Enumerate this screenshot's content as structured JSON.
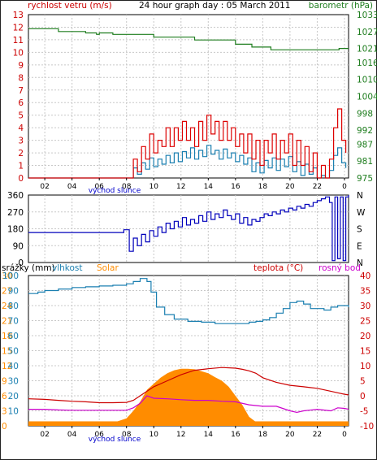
{
  "chart_data": [
    {
      "type": "line",
      "title": "24 hour graph day : 05 March 2011",
      "left_axis_label": "rychlost vetru (m/s)",
      "right_axis_label": "barometr (hPa)",
      "x_ticks": [
        "02",
        "04",
        "06",
        "08",
        "10",
        "12",
        "14",
        "16",
        "18",
        "20",
        "22",
        "0"
      ],
      "x_annotation": "východ slunce",
      "left_ticks": [
        0,
        1,
        2,
        3,
        4,
        5,
        6,
        7,
        8,
        9,
        10,
        11,
        12,
        13
      ],
      "right_ticks": [
        975,
        981,
        987,
        992,
        998,
        1004,
        1010,
        1016,
        1021,
        1027,
        1033
      ],
      "xlim": [
        0.8,
        24.3
      ],
      "ylim_left": [
        0,
        13
      ],
      "ylim_right": [
        975,
        1033
      ],
      "grid": true,
      "colors": {
        "gust": "#dd0000",
        "wind": "#1a7fb0",
        "pressure": "#1e7d1e"
      },
      "series": [
        {
          "key": "pressure",
          "axis": "right",
          "step": true,
          "x": [
            0.8,
            3.0,
            5.0,
            5.8,
            6.0,
            7.0,
            10.0,
            13.0,
            16.0,
            17.2,
            18.6,
            23.2,
            23.6,
            24.3
          ],
          "y": [
            1028,
            1027,
            1026.5,
            1026,
            1026.5,
            1026,
            1025,
            1024,
            1022.5,
            1021.5,
            1020.5,
            1020.5,
            1021,
            1021
          ]
        },
        {
          "key": "wind",
          "axis": "left",
          "step": true,
          "x": [
            0.8,
            8.2,
            8.5,
            8.8,
            9.1,
            9.4,
            9.7,
            10.0,
            10.3,
            10.6,
            10.9,
            11.2,
            11.5,
            11.8,
            12.1,
            12.4,
            12.7,
            13.0,
            13.3,
            13.6,
            13.9,
            14.2,
            14.5,
            14.8,
            15.1,
            15.4,
            15.7,
            16.0,
            16.3,
            16.6,
            16.9,
            17.2,
            17.5,
            17.8,
            18.1,
            18.4,
            18.7,
            19.0,
            19.3,
            19.6,
            19.9,
            20.2,
            20.5,
            20.8,
            21.1,
            21.4,
            21.7,
            22.0,
            22.3,
            22.6,
            22.9,
            23.2,
            23.5,
            23.8,
            24.1
          ],
          "y": [
            0,
            0,
            0.8,
            0.3,
            1.2,
            0.7,
            1.6,
            0.9,
            1.5,
            1.1,
            1.8,
            1.2,
            2.0,
            1.3,
            2.1,
            1.6,
            2.4,
            1.5,
            2.2,
            1.7,
            2.6,
            1.9,
            2.2,
            1.5,
            2.3,
            1.6,
            2.0,
            1.3,
            1.8,
            1.1,
            1.6,
            0.5,
            1.2,
            0.4,
            1.4,
            0.8,
            1.6,
            0.6,
            1.5,
            0.9,
            1.7,
            0.5,
            1.3,
            0.2,
            1.1,
            0.3,
            0.8,
            0,
            0.2,
            0,
            0.6,
            1.8,
            2.4,
            1.2,
            0.8
          ]
        },
        {
          "key": "gust",
          "axis": "left",
          "step": true,
          "x": [
            0.8,
            8.2,
            8.5,
            8.8,
            9.1,
            9.4,
            9.7,
            10.0,
            10.3,
            10.6,
            10.9,
            11.2,
            11.5,
            11.8,
            12.1,
            12.4,
            12.7,
            13.0,
            13.3,
            13.6,
            13.9,
            14.2,
            14.5,
            14.8,
            15.1,
            15.4,
            15.7,
            16.0,
            16.3,
            16.6,
            16.9,
            17.2,
            17.5,
            17.8,
            18.1,
            18.4,
            18.7,
            19.0,
            19.3,
            19.6,
            19.9,
            20.2,
            20.5,
            20.8,
            21.1,
            21.4,
            21.7,
            22.0,
            22.3,
            22.6,
            22.9,
            23.2,
            23.5,
            23.8,
            24.1
          ],
          "y": [
            0,
            0,
            1.5,
            0.5,
            2.5,
            1.5,
            3.5,
            2.0,
            3.0,
            2.5,
            4.0,
            2.5,
            4.0,
            3.0,
            4.5,
            3.0,
            4.0,
            2.5,
            4.5,
            3.0,
            5.0,
            3.5,
            4.5,
            3.0,
            4.5,
            3.0,
            4.0,
            2.5,
            3.5,
            2.0,
            3.5,
            1.5,
            3.0,
            1.0,
            3.0,
            2.0,
            3.5,
            1.5,
            3.0,
            2.0,
            3.5,
            1.0,
            3.0,
            1.0,
            2.5,
            0.5,
            2.0,
            0,
            1.0,
            0,
            1.5,
            4.0,
            5.5,
            3.0,
            2.0
          ]
        }
      ]
    },
    {
      "type": "line",
      "y_ticks": [
        0,
        90,
        180,
        270,
        360
      ],
      "right_labels": [
        "N",
        "W",
        "S",
        "E",
        "N"
      ],
      "x_annotation": "",
      "xlim": [
        0.8,
        24.3
      ],
      "ylim": [
        0,
        360
      ],
      "grid": true,
      "colors": {
        "direction": "#0000bb"
      },
      "series": [
        {
          "key": "direction",
          "step": true,
          "x": [
            0.8,
            7.8,
            8.2,
            8.5,
            8.8,
            9.1,
            9.4,
            9.7,
            10.0,
            10.3,
            10.6,
            10.9,
            11.2,
            11.5,
            11.8,
            12.1,
            12.4,
            12.7,
            13.0,
            13.3,
            13.6,
            13.9,
            14.2,
            14.5,
            14.8,
            15.1,
            15.4,
            15.7,
            16.0,
            16.3,
            16.6,
            16.9,
            17.2,
            17.5,
            17.8,
            18.1,
            18.4,
            18.7,
            19.0,
            19.3,
            19.6,
            19.9,
            20.2,
            20.5,
            20.8,
            21.1,
            21.4,
            21.7,
            22.0,
            22.3,
            22.6,
            22.9,
            23.1,
            23.3,
            23.5,
            23.7,
            23.9,
            24.1,
            24.3
          ],
          "y": [
            160,
            175,
            60,
            130,
            90,
            150,
            110,
            170,
            140,
            190,
            160,
            210,
            180,
            220,
            190,
            240,
            200,
            230,
            210,
            250,
            220,
            270,
            230,
            260,
            240,
            280,
            250,
            230,
            260,
            210,
            240,
            200,
            230,
            220,
            240,
            260,
            250,
            270,
            260,
            280,
            270,
            290,
            280,
            300,
            290,
            310,
            300,
            320,
            330,
            340,
            350,
            320,
            10,
            350,
            20,
            350,
            10,
            350,
            360
          ]
        }
      ]
    },
    {
      "type": "area",
      "left_labels": [
        {
          "text": "srážky (mm)",
          "color": "#000000"
        },
        {
          "text": "vlhkost",
          "color": "#1a7fb0"
        },
        {
          "text": "Solar",
          "color": "#ff8c00"
        }
      ],
      "right_labels": [
        {
          "text": "teplota (°C)",
          "color": "#cc0000"
        },
        {
          "text": "rosný bod",
          "color": "#cc00cc"
        }
      ],
      "axis_rain_ticks": [
        0,
        3,
        6,
        9,
        12,
        15,
        18,
        21,
        24,
        27,
        30
      ],
      "axis_humidity_ticks": [
        10,
        20,
        30,
        40,
        50,
        60,
        70,
        80,
        90,
        100
      ],
      "axis_temp_ticks": [
        -10,
        -5,
        0,
        5,
        10,
        15,
        20,
        25,
        30,
        35,
        40
      ],
      "x_ticks": [
        "02",
        "04",
        "06",
        "08",
        "10",
        "12",
        "14",
        "16",
        "18",
        "20",
        "22",
        "0"
      ],
      "x_annotation": "východ slunce",
      "xlim": [
        0.8,
        24.3
      ],
      "ylim_temp": [
        -10,
        40
      ],
      "ylim_humidity": [
        0,
        100
      ],
      "ylim_rain": [
        0,
        30
      ],
      "grid": true,
      "colors": {
        "humidity": "#1a7fb0",
        "temperature": "#cc0000",
        "dewpoint": "#cc00cc",
        "solar": "#ff8c00",
        "rain": "#ff8c00"
      },
      "series": [
        {
          "key": "humidity",
          "axis": "humidity",
          "step": true,
          "x": [
            0.8,
            1.5,
            2.0,
            3.0,
            4.0,
            5.0,
            6.0,
            7.0,
            8.0,
            8.5,
            9.0,
            9.5,
            9.8,
            10.2,
            10.8,
            11.5,
            12.5,
            13.5,
            14.5,
            15.5,
            16.5,
            17.0,
            17.5,
            18.0,
            18.5,
            19.0,
            19.5,
            20.0,
            20.5,
            21.0,
            21.5,
            22.0,
            22.5,
            23.0,
            23.5,
            24.0,
            24.3
          ],
          "y": [
            88,
            89,
            90,
            91,
            92,
            92.5,
            93,
            93.5,
            94.5,
            96,
            98,
            96,
            89,
            79,
            74,
            71,
            69.5,
            69,
            68,
            68,
            68,
            69,
            69.5,
            70.5,
            72,
            75,
            78,
            82,
            83,
            81,
            78,
            78,
            77,
            79,
            80,
            80,
            79
          ]
        },
        {
          "key": "temperature",
          "axis": "temp",
          "step": false,
          "x": [
            0.8,
            2,
            3,
            4,
            5,
            6,
            7,
            8,
            8.5,
            9,
            9.5,
            10,
            11,
            12,
            13,
            14,
            15,
            16,
            16.5,
            17,
            17.5,
            18,
            19,
            20,
            21,
            22,
            23,
            23.5,
            24,
            24.3
          ],
          "y": [
            -1,
            -1.2,
            -1.5,
            -1.8,
            -2,
            -2.3,
            -2.3,
            -2.2,
            -1.5,
            0,
            1.5,
            3,
            5,
            7,
            8.5,
            9,
            9.4,
            9.2,
            8.8,
            8.3,
            7.5,
            6,
            4.5,
            3.5,
            3,
            2.5,
            1.5,
            1,
            0.5,
            0.3
          ]
        },
        {
          "key": "dewpoint",
          "axis": "temp",
          "step": false,
          "x": [
            0.8,
            2,
            3,
            4,
            5,
            6,
            7,
            8,
            8.5,
            9,
            9.5,
            10,
            11,
            12,
            13,
            14,
            15,
            16,
            17,
            18,
            19,
            20,
            20.5,
            21,
            22,
            23,
            23.5,
            24,
            24.3
          ],
          "y": [
            -4.5,
            -4.5,
            -4.7,
            -4.8,
            -4.8,
            -4.8,
            -4.8,
            -4.8,
            -4,
            -2.5,
            0,
            -0.8,
            -1,
            -1.3,
            -1.5,
            -1.5,
            -1.8,
            -2,
            -3,
            -3.5,
            -3.5,
            -5,
            -5.5,
            -5,
            -4.5,
            -5,
            -4,
            -4.2,
            -4.5
          ]
        },
        {
          "key": "solar",
          "axis": "temp",
          "step": false,
          "fill": true,
          "baseline": -8.7,
          "x": [
            0.8,
            7.2,
            8.0,
            8.5,
            9.0,
            9.5,
            10,
            10.5,
            11,
            11.5,
            12,
            12.5,
            13,
            13.5,
            14,
            14.5,
            15,
            15.5,
            16,
            16.5,
            17,
            17.5,
            24.3
          ],
          "y": [
            -8.7,
            -8.7,
            -7.5,
            -5,
            -2,
            2,
            4,
            6,
            7.5,
            8.5,
            9,
            9,
            8.8,
            8.2,
            7.5,
            6.2,
            5,
            3,
            0,
            -3,
            -7,
            -8.7,
            -8.7
          ]
        },
        {
          "key": "rain",
          "axis": "rain",
          "step": true,
          "fill": true,
          "x": [
            0.8,
            24.3
          ],
          "y": [
            0.9,
            0.9
          ]
        }
      ]
    }
  ]
}
